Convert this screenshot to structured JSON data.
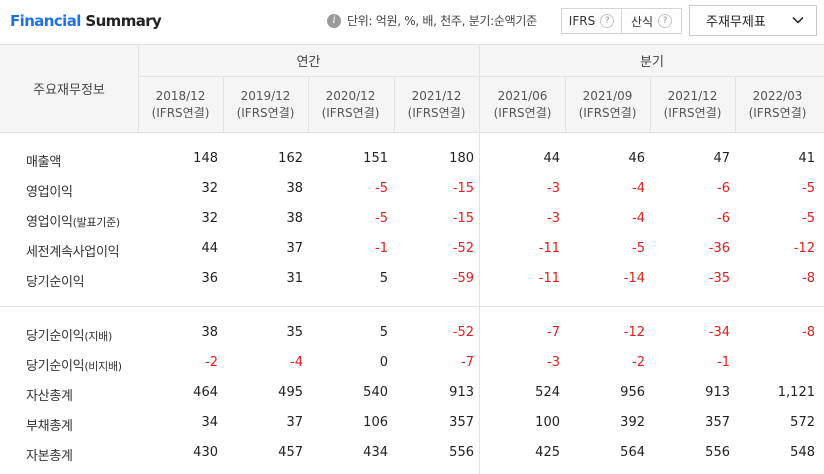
{
  "header": {
    "title_part1": "Financial",
    "title_part2": "Summary",
    "unit_text": "단위: 억원, %, 배, 천주, 분기:순액기준",
    "toggle": [
      "IFRS",
      "산식"
    ],
    "dropdown_value": "주재무제표"
  },
  "table": {
    "first_header": "주요재무정보",
    "groups": [
      "연간",
      "분기"
    ],
    "columns": [
      {
        "period": "2018/12",
        "basis": "(IFRS연결)"
      },
      {
        "period": "2019/12",
        "basis": "(IFRS연결)"
      },
      {
        "period": "2020/12",
        "basis": "(IFRS연결)"
      },
      {
        "period": "2021/12",
        "basis": "(IFRS연결)"
      },
      {
        "period": "2021/06",
        "basis": "(IFRS연결)"
      },
      {
        "period": "2021/09",
        "basis": "(IFRS연결)"
      },
      {
        "period": "2021/12",
        "basis": "(IFRS연결)"
      },
      {
        "period": "2022/03",
        "basis": "(IFRS연결)"
      }
    ],
    "rows": [
      {
        "label": "매출액",
        "label_suffix": "",
        "values": [
          "148",
          "162",
          "151",
          "180",
          "44",
          "46",
          "47",
          "41"
        ]
      },
      {
        "label": "영업이익",
        "label_suffix": "",
        "values": [
          "32",
          "38",
          "-5",
          "-15",
          "-3",
          "-4",
          "-6",
          "-5"
        ]
      },
      {
        "label": "영업이익",
        "label_suffix": "(발표기준)",
        "values": [
          "32",
          "38",
          "-5",
          "-15",
          "-3",
          "-4",
          "-6",
          "-5"
        ]
      },
      {
        "label": "세전계속사업이익",
        "label_suffix": "",
        "values": [
          "44",
          "37",
          "-1",
          "-52",
          "-11",
          "-5",
          "-36",
          "-12"
        ]
      },
      {
        "label": "당기순이익",
        "label_suffix": "",
        "values": [
          "36",
          "31",
          "5",
          "-59",
          "-11",
          "-14",
          "-35",
          "-8"
        ]
      },
      {
        "label": "당기순이익",
        "label_suffix": "(지배)",
        "values": [
          "38",
          "35",
          "5",
          "-52",
          "-7",
          "-12",
          "-34",
          "-8"
        ]
      },
      {
        "label": "당기순이익",
        "label_suffix": "(비지배)",
        "values": [
          "-2",
          "-4",
          "0",
          "-7",
          "-3",
          "-2",
          "-1",
          ""
        ]
      },
      {
        "label": "자산총계",
        "label_suffix": "",
        "values": [
          "464",
          "495",
          "540",
          "913",
          "524",
          "956",
          "913",
          "1,121"
        ]
      },
      {
        "label": "부채총계",
        "label_suffix": "",
        "values": [
          "34",
          "37",
          "106",
          "357",
          "100",
          "392",
          "357",
          "572"
        ]
      },
      {
        "label": "자본총계",
        "label_suffix": "",
        "values": [
          "430",
          "457",
          "434",
          "556",
          "425",
          "564",
          "556",
          "548"
        ]
      }
    ]
  }
}
